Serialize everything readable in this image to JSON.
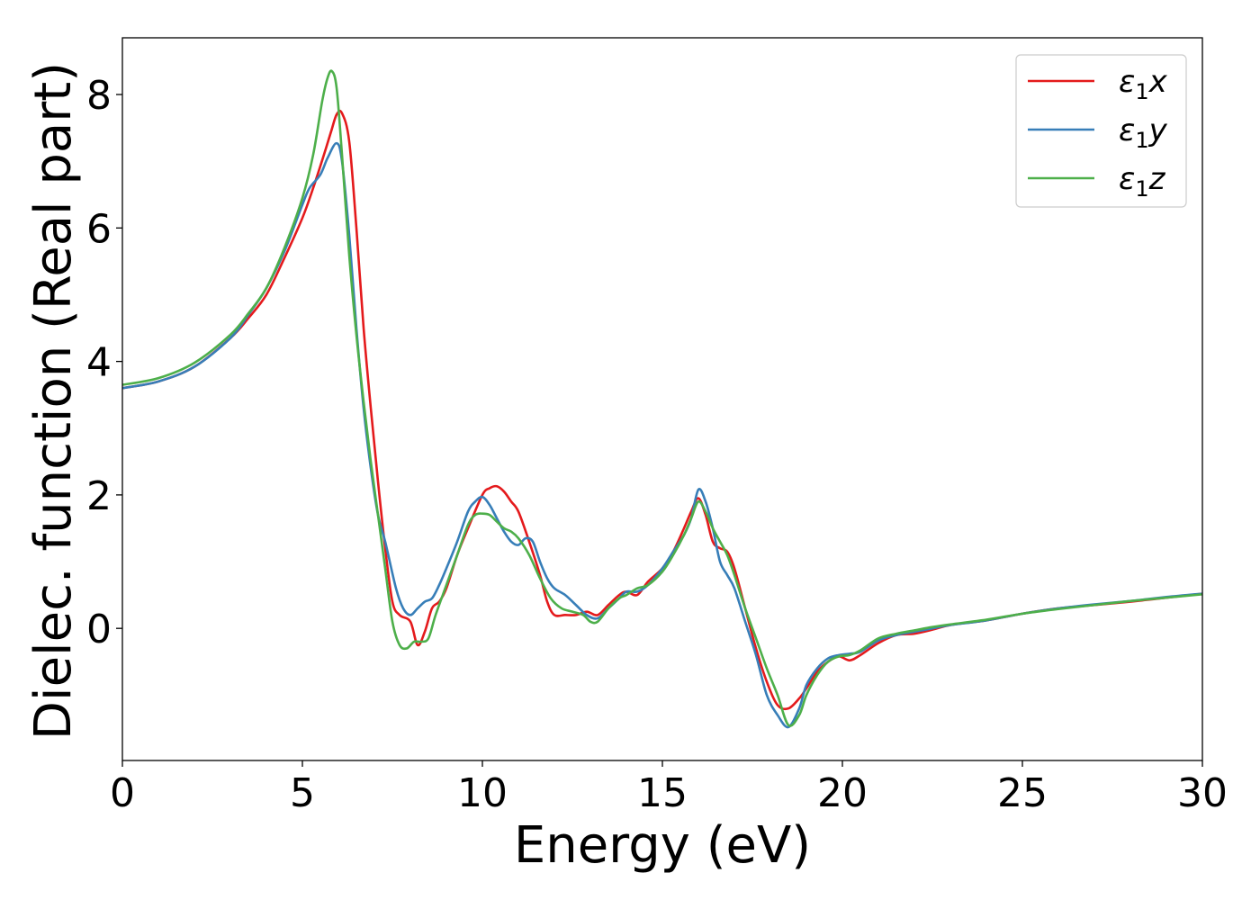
{
  "chart_data": {
    "type": "line",
    "title": "",
    "xlabel": "Energy (eV)",
    "ylabel": "Dielec. function (Real part)",
    "xlim": [
      0,
      30
    ],
    "ylim": [
      -1.98,
      8.85
    ],
    "xticks": [
      "0",
      "5",
      "10",
      "15",
      "20",
      "25",
      "30"
    ],
    "yticks": [
      "0",
      "2",
      "4",
      "6",
      "8"
    ],
    "grid": false,
    "legend_position": "top-right",
    "series": [
      {
        "name": "ε₁x",
        "legend": {
          "base": "ε",
          "sub": "1",
          "var": "x"
        },
        "color": "#e41a1c",
        "x": [
          0,
          1,
          2,
          3,
          3.5,
          4,
          4.5,
          5,
          5.3,
          5.6,
          5.8,
          5.95,
          6.1,
          6.3,
          6.5,
          6.7,
          6.9,
          7.1,
          7.3,
          7.5,
          7.7,
          8.0,
          8.2,
          8.4,
          8.6,
          8.8,
          9.0,
          9.3,
          9.6,
          10.0,
          10.2,
          10.4,
          10.6,
          10.8,
          11.0,
          11.3,
          11.6,
          11.8,
          12.0,
          12.3,
          12.6,
          12.9,
          13.2,
          13.5,
          13.8,
          14.0,
          14.3,
          14.6,
          15.0,
          15.3,
          15.6,
          15.8,
          16.0,
          16.2,
          16.4,
          16.6,
          16.8,
          17.0,
          17.3,
          17.6,
          17.9,
          18.2,
          18.5,
          18.8,
          19.0,
          19.3,
          19.6,
          19.9,
          20.2,
          20.5,
          21.0,
          21.5,
          22.0,
          22.5,
          23.0,
          24.0,
          25.0,
          26.0,
          27.0,
          28.0,
          29.0,
          30.0
        ],
        "y": [
          3.6,
          3.7,
          3.92,
          4.35,
          4.65,
          5.0,
          5.55,
          6.15,
          6.6,
          7.1,
          7.45,
          7.7,
          7.72,
          7.3,
          6.0,
          4.5,
          3.3,
          2.2,
          1.2,
          0.4,
          0.2,
          0.1,
          -0.25,
          -0.05,
          0.3,
          0.4,
          0.6,
          1.1,
          1.5,
          2.0,
          2.1,
          2.13,
          2.05,
          1.9,
          1.75,
          1.3,
          0.8,
          0.4,
          0.2,
          0.2,
          0.2,
          0.25,
          0.2,
          0.35,
          0.5,
          0.55,
          0.5,
          0.7,
          0.9,
          1.15,
          1.5,
          1.75,
          1.95,
          1.7,
          1.3,
          1.2,
          1.15,
          0.9,
          0.3,
          -0.3,
          -0.8,
          -1.15,
          -1.2,
          -1.05,
          -0.9,
          -0.65,
          -0.5,
          -0.42,
          -0.48,
          -0.4,
          -0.22,
          -0.1,
          -0.08,
          -0.02,
          0.05,
          0.12,
          0.22,
          0.3,
          0.35,
          0.4,
          0.46,
          0.52
        ]
      },
      {
        "name": "ε₁y",
        "legend": {
          "base": "ε",
          "sub": "1",
          "var": "y"
        },
        "color": "#377eb8",
        "x": [
          0,
          1,
          2,
          3,
          3.5,
          4,
          4.5,
          5,
          5.2,
          5.5,
          5.7,
          5.95,
          6.1,
          6.3,
          6.5,
          6.7,
          6.9,
          7.1,
          7.3,
          7.6,
          7.8,
          8.0,
          8.2,
          8.4,
          8.6,
          8.8,
          9.0,
          9.3,
          9.6,
          9.8,
          10.0,
          10.2,
          10.4,
          10.6,
          10.8,
          11.0,
          11.2,
          11.4,
          11.6,
          11.8,
          12.0,
          12.3,
          12.6,
          12.9,
          13.2,
          13.5,
          13.8,
          14.0,
          14.3,
          14.6,
          15.0,
          15.3,
          15.6,
          15.8,
          16.0,
          16.2,
          16.4,
          16.6,
          16.8,
          17.0,
          17.3,
          17.6,
          17.9,
          18.2,
          18.5,
          18.8,
          19.0,
          19.3,
          19.6,
          19.9,
          20.2,
          20.5,
          21.0,
          21.5,
          22.0,
          22.5,
          23.0,
          24.0,
          25.0,
          26.0,
          27.0,
          28.0,
          29.0,
          30.0
        ],
        "y": [
          3.6,
          3.7,
          3.92,
          4.35,
          4.7,
          5.1,
          5.65,
          6.35,
          6.6,
          6.8,
          7.05,
          7.27,
          7.0,
          5.9,
          4.5,
          3.3,
          2.4,
          1.7,
          1.3,
          0.6,
          0.3,
          0.2,
          0.3,
          0.4,
          0.45,
          0.65,
          0.9,
          1.3,
          1.75,
          1.9,
          1.97,
          1.85,
          1.65,
          1.45,
          1.3,
          1.25,
          1.35,
          1.3,
          1.0,
          0.75,
          0.6,
          0.5,
          0.35,
          0.2,
          0.15,
          0.3,
          0.45,
          0.55,
          0.55,
          0.65,
          0.9,
          1.15,
          1.4,
          1.65,
          2.08,
          1.9,
          1.5,
          1.0,
          0.8,
          0.6,
          0.1,
          -0.4,
          -1.0,
          -1.3,
          -1.48,
          -1.2,
          -0.85,
          -0.6,
          -0.45,
          -0.4,
          -0.38,
          -0.35,
          -0.18,
          -0.1,
          -0.05,
          0.0,
          0.05,
          0.12,
          0.22,
          0.3,
          0.36,
          0.41,
          0.47,
          0.52
        ]
      },
      {
        "name": "ε₁z",
        "legend": {
          "base": "ε",
          "sub": "1",
          "var": "z"
        },
        "color": "#4daf4a",
        "x": [
          0,
          1,
          2,
          3,
          3.5,
          4,
          4.5,
          5,
          5.3,
          5.55,
          5.7,
          5.82,
          5.95,
          6.1,
          6.3,
          6.5,
          6.7,
          6.9,
          7.1,
          7.3,
          7.5,
          7.7,
          7.9,
          8.1,
          8.3,
          8.5,
          8.7,
          9.0,
          9.3,
          9.6,
          9.8,
          10.0,
          10.2,
          10.4,
          10.6,
          10.8,
          11.0,
          11.3,
          11.6,
          11.9,
          12.2,
          12.5,
          12.8,
          13.0,
          13.2,
          13.5,
          13.8,
          14.0,
          14.3,
          14.6,
          15.0,
          15.3,
          15.6,
          15.8,
          16.0,
          16.2,
          16.4,
          16.6,
          16.8,
          17.0,
          17.3,
          17.6,
          17.9,
          18.2,
          18.5,
          18.8,
          19.0,
          19.3,
          19.6,
          19.9,
          20.2,
          20.5,
          21.0,
          21.5,
          22.0,
          22.5,
          23.0,
          24.0,
          25.0,
          26.0,
          27.0,
          28.0,
          29.0,
          30.0
        ],
        "y": [
          3.65,
          3.75,
          3.98,
          4.4,
          4.72,
          5.1,
          5.7,
          6.45,
          7.1,
          7.9,
          8.25,
          8.35,
          8.1,
          7.1,
          5.6,
          4.4,
          3.4,
          2.5,
          1.7,
          0.9,
          0.1,
          -0.25,
          -0.3,
          -0.2,
          -0.2,
          -0.15,
          0.2,
          0.65,
          1.1,
          1.55,
          1.7,
          1.72,
          1.7,
          1.6,
          1.5,
          1.45,
          1.35,
          1.1,
          0.75,
          0.45,
          0.3,
          0.25,
          0.2,
          0.1,
          0.1,
          0.3,
          0.45,
          0.5,
          0.6,
          0.65,
          0.85,
          1.1,
          1.4,
          1.65,
          1.9,
          1.75,
          1.5,
          1.3,
          1.1,
          0.8,
          0.3,
          -0.15,
          -0.6,
          -1.0,
          -1.45,
          -1.3,
          -1.0,
          -0.7,
          -0.5,
          -0.42,
          -0.4,
          -0.33,
          -0.15,
          -0.08,
          -0.03,
          0.02,
          0.06,
          0.13,
          0.22,
          0.29,
          0.35,
          0.41,
          0.46,
          0.51
        ]
      }
    ]
  }
}
